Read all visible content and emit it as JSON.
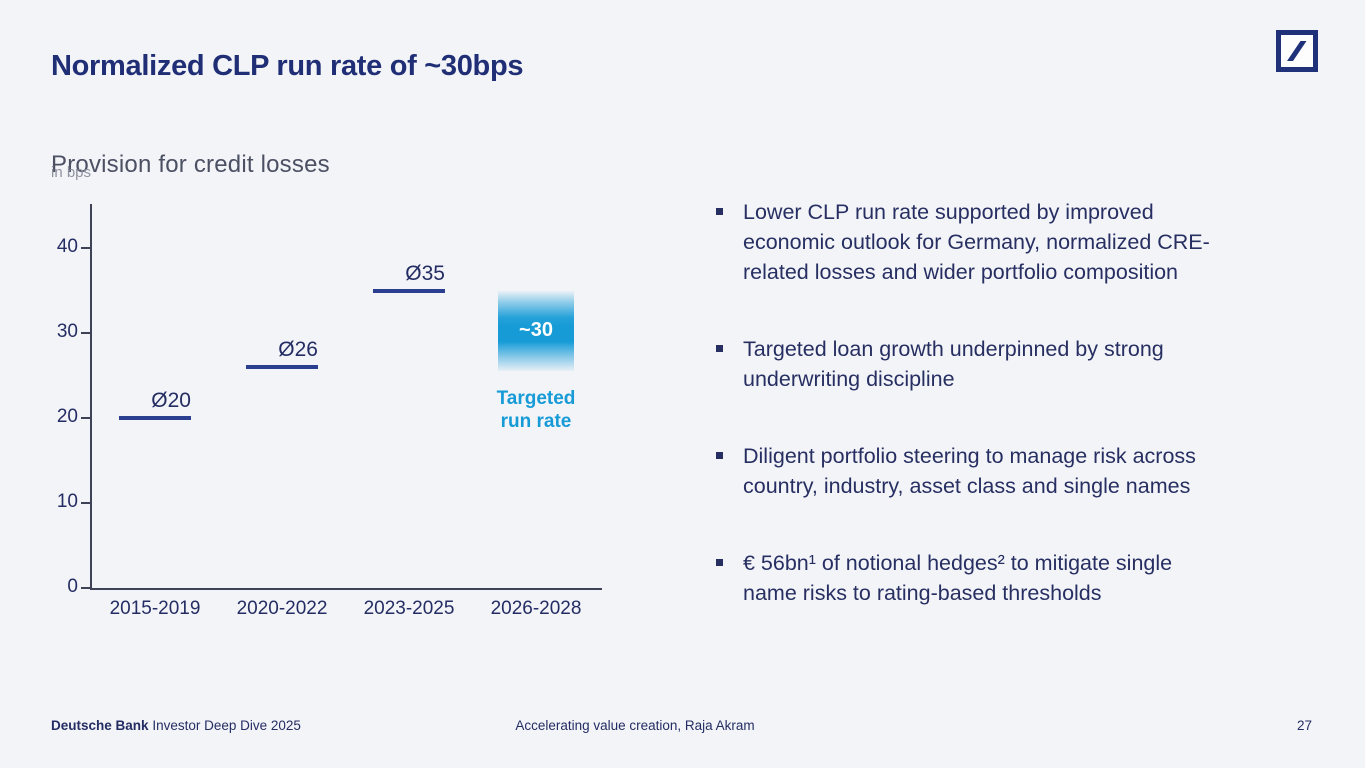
{
  "header": {
    "title": "Normalized CLP run rate of ~30bps"
  },
  "chart_data": {
    "type": "scatter",
    "marker_style": "horizontal-dash",
    "title": "Provision for credit losses",
    "subtitle": "in bps",
    "categories": [
      "2015-2019",
      "2020-2022",
      "2023-2025",
      "2026-2028"
    ],
    "points": [
      {
        "category": "2015-2019",
        "value": 20,
        "label": "Ø20"
      },
      {
        "category": "2020-2022",
        "value": 26,
        "label": "Ø26"
      },
      {
        "category": "2023-2025",
        "value": 35,
        "label": "Ø35"
      }
    ],
    "target": {
      "category": "2026-2028",
      "value": 30,
      "label": "~30",
      "range": [
        25.5,
        35
      ],
      "caption": "Targeted run rate",
      "color": "#169bd7"
    },
    "yticks": [
      0,
      10,
      20,
      30,
      40
    ],
    "ylim": [
      0,
      45
    ],
    "grid": false,
    "legend": "none",
    "marker_color": "#2a3f8f",
    "axis_color": "#3d4257"
  },
  "bullets": [
    {
      "lines": [
        "Lower CLP run rate supported by improved",
        "economic outlook for Germany, normalized CRE-",
        "related losses and wider portfolio composition"
      ]
    },
    {
      "lines": [
        "Targeted loan growth underpinned by strong",
        "underwriting discipline"
      ]
    },
    {
      "lines": [
        "Diligent portfolio steering to manage risk across",
        "country, industry, asset class and single names"
      ]
    },
    {
      "lines": [
        "€ 56bn¹ of notional hedges² to mitigate single",
        "name risks to rating-based thresholds"
      ]
    }
  ],
  "footer": {
    "brand": "Deutsche Bank",
    "event": "Investor Deep Dive 2025",
    "center": "Accelerating value creation, Raja Akram",
    "page": "27"
  },
  "colors": {
    "background": "#f3f4f8",
    "title_navy": "#1f2e75",
    "text_navy": "#272f62",
    "marker_blue": "#2a3f8f",
    "cyan": "#169bd7"
  }
}
